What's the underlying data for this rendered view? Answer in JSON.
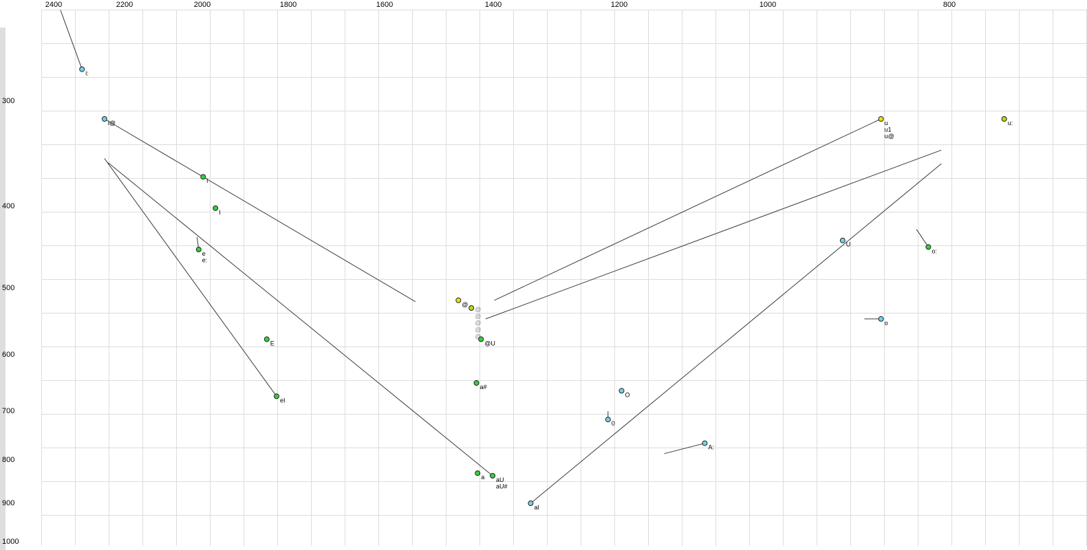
{
  "chart_data": {
    "type": "scatter",
    "title": "",
    "x_axis": {
      "ticks": [
        2400,
        2200,
        2000,
        1800,
        1600,
        1400,
        1200,
        1000,
        800
      ],
      "scale": "log",
      "reversed": true
    },
    "y_axis": {
      "ticks": [
        300,
        400,
        500,
        600,
        700,
        800,
        900,
        1000
      ],
      "scale": "log"
    },
    "colors": {
      "cyan": "#74d3e8",
      "green": "#35d03c",
      "yellow": "#e9e50a",
      "yellowgreen": "#b9dc12",
      "gray": "#8f8f97",
      "line": "#3a3a3a"
    },
    "points": [
      {
        "labels": [
          "i:"
        ],
        "f2": 2318,
        "f1": 275,
        "color": "cyan"
      },
      {
        "labels": [
          "i@"
        ],
        "f2": 2255,
        "f1": 315,
        "color": "cyan"
      },
      {
        "labels": [
          "i"
        ],
        "f2": 1998,
        "f1": 369,
        "color": "green"
      },
      {
        "labels": [
          "I"
        ],
        "f2": 1968,
        "f1": 402,
        "color": "green"
      },
      {
        "labels": [
          "e",
          "e:"
        ],
        "f2": 2009,
        "f1": 450,
        "color": "green"
      },
      {
        "labels": [
          "E"
        ],
        "f2": 1848,
        "f1": 575,
        "color": "green"
      },
      {
        "labels": [
          "eI"
        ],
        "f2": 1826,
        "f1": 672,
        "color": "green"
      },
      {
        "labels": [
          "a"
        ],
        "f2": 1427,
        "f1": 829,
        "color": "green"
      },
      {
        "labels": [
          "a#"
        ],
        "f2": 1429,
        "f1": 648,
        "color": "green"
      },
      {
        "labels": [
          "aU",
          "aU#"
        ],
        "f2": 1401,
        "f1": 835,
        "color": "green"
      },
      {
        "labels": [
          "aI"
        ],
        "f2": 1337,
        "f1": 900,
        "color": "cyan"
      },
      {
        "labels": [
          "@"
        ],
        "f2": 1461,
        "f1": 517,
        "color": "yellow"
      },
      {
        "labels": [],
        "f2": 1438,
        "f1": 528,
        "color": "yellowgreen"
      },
      {
        "labels": [
          "@U"
        ],
        "f2": 1421,
        "f1": 575,
        "color": "green"
      },
      {
        "labels": [
          "O"
        ],
        "f2": 1196,
        "f1": 662,
        "color": "cyan"
      },
      {
        "labels": [
          "0"
        ],
        "f2": 1216,
        "f1": 716,
        "color": "cyan"
      },
      {
        "labels": [
          "A:"
        ],
        "f2": 1080,
        "f1": 764,
        "color": "cyan"
      },
      {
        "labels": [
          "U"
        ],
        "f2": 912,
        "f1": 439,
        "color": "cyan"
      },
      {
        "labels": [
          "u",
          "u1",
          "u@"
        ],
        "f2": 870,
        "f1": 315,
        "color": "yellow"
      },
      {
        "labels": [
          "u:"
        ],
        "f2": 748,
        "f1": 315,
        "color": "yellowgreen"
      },
      {
        "labels": [
          "o:"
        ],
        "f2": 821,
        "f1": 447,
        "color": "green"
      },
      {
        "labels": [
          "o"
        ],
        "f2": 870,
        "f1": 544,
        "color": "cyan"
      }
    ],
    "schwa_glyphs": {
      "text": "@",
      "f2": 1427,
      "f1_values": [
        530,
        540,
        550,
        560,
        571
      ]
    },
    "lines": [
      {
        "from": [
          2380,
          234
        ],
        "to": [
          2318,
          275
        ]
      },
      {
        "from": [
          2255,
          315
        ],
        "to": [
          1540,
          519
        ]
      },
      {
        "from": [
          2255,
          351
        ],
        "to": [
          1826,
          672
        ]
      },
      {
        "from": [
          2245,
          355
        ],
        "to": [
          1401,
          835
        ]
      },
      {
        "from": [
          870,
          315
        ],
        "to": [
          1398,
          517
        ]
      },
      {
        "from": [
          808,
          343
        ],
        "to": [
          1413,
          544
        ]
      },
      {
        "from": [
          808,
          356
        ],
        "to": [
          1337,
          900
        ]
      },
      {
        "from": [
          1135,
          786
        ],
        "to": [
          1080,
          764
        ]
      },
      {
        "from": [
          833,
          426
        ],
        "to": [
          821,
          447
        ]
      },
      {
        "from": [
          888,
          544
        ],
        "to": [
          870,
          544
        ]
      },
      {
        "from": [
          2013,
          435
        ],
        "to": [
          2009,
          450
        ]
      },
      {
        "from": [
          1216,
          700
        ],
        "to": [
          1216,
          716
        ]
      }
    ]
  }
}
